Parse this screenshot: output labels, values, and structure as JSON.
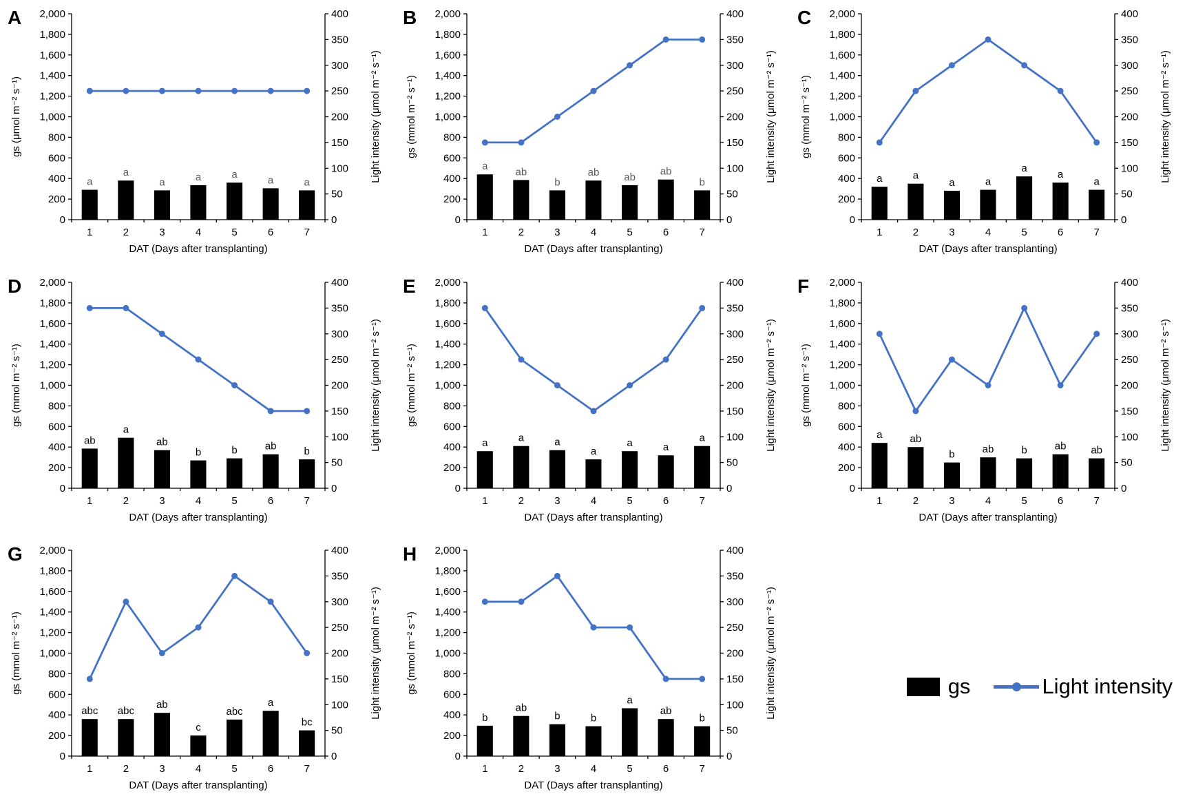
{
  "figure": {
    "background": "#ffffff",
    "bar_color": "#000000",
    "line_color": "#4472C4"
  },
  "legend": {
    "gs_label": "gs",
    "light_label": "Light intensity",
    "bar_color": "#000000",
    "line_color": "#4472C4"
  },
  "chart_data": [
    {
      "type": "bar+line",
      "panel": "A",
      "xlabel": "DAT (Days after transplanting)",
      "ylabel_left": "gs (μmol m⁻² s⁻¹)",
      "ylabel_right": "Light intensity (μmol m⁻² s⁻¹)",
      "ylim_left": [
        0,
        2000
      ],
      "ytick_step_left": 200,
      "ylim_right": [
        0,
        400
      ],
      "ytick_step_right": 50,
      "sig_color": "#595959",
      "categories": [
        "1",
        "2",
        "3",
        "4",
        "5",
        "6",
        "7"
      ],
      "series": [
        {
          "name": "gs",
          "type": "bar",
          "axis": "left",
          "color": "#000000",
          "values": [
            290,
            380,
            285,
            335,
            360,
            305,
            285
          ],
          "sig_labels": [
            "a",
            "a",
            "a",
            "a",
            "a",
            "a",
            "a"
          ]
        },
        {
          "name": "Light intensity",
          "type": "line",
          "axis": "right",
          "color": "#4472C4",
          "values": [
            250,
            250,
            250,
            250,
            250,
            250,
            250
          ]
        }
      ]
    },
    {
      "type": "bar+line",
      "panel": "B",
      "xlabel": "DAT (Days after transplanting)",
      "ylabel_left": "gs (mmol m⁻² s⁻¹)",
      "ylabel_right": "Light intensity (μmol m⁻² s⁻¹)",
      "ylim_left": [
        0,
        2000
      ],
      "ytick_step_left": 200,
      "ylim_right": [
        0,
        400
      ],
      "ytick_step_right": 50,
      "sig_color": "#595959",
      "categories": [
        "1",
        "2",
        "3",
        "4",
        "5",
        "6",
        "7"
      ],
      "series": [
        {
          "name": "gs",
          "type": "bar",
          "axis": "left",
          "color": "#000000",
          "values": [
            440,
            385,
            285,
            380,
            335,
            390,
            285
          ],
          "sig_labels": [
            "a",
            "ab",
            "b",
            "ab",
            "ab",
            "ab",
            "b"
          ]
        },
        {
          "name": "Light intensity",
          "type": "line",
          "axis": "right",
          "color": "#4472C4",
          "values": [
            150,
            150,
            200,
            250,
            300,
            350,
            350
          ]
        }
      ]
    },
    {
      "type": "bar+line",
      "panel": "C",
      "xlabel": "DAT (Days after transplanting)",
      "ylabel_left": "gs (mmol m⁻² s⁻¹)",
      "ylabel_right": "Light intensity (μmol m⁻² s⁻¹)",
      "ylim_left": [
        0,
        2000
      ],
      "ytick_step_left": 200,
      "ylim_right": [
        0,
        400
      ],
      "ytick_step_right": 50,
      "sig_color": "#000000",
      "categories": [
        "1",
        "2",
        "3",
        "4",
        "5",
        "6",
        "7"
      ],
      "series": [
        {
          "name": "gs",
          "type": "bar",
          "axis": "left",
          "color": "#000000",
          "values": [
            320,
            350,
            280,
            290,
            420,
            360,
            290
          ],
          "sig_labels": [
            "a",
            "a",
            "a",
            "a",
            "a",
            "a",
            "a"
          ]
        },
        {
          "name": "Light intensity",
          "type": "line",
          "axis": "right",
          "color": "#4472C4",
          "values": [
            150,
            250,
            300,
            350,
            300,
            250,
            150
          ]
        }
      ]
    },
    {
      "type": "bar+line",
      "panel": "D",
      "xlabel": "DAT (Days after transplanting)",
      "ylabel_left": "gs (mmol m⁻² s⁻¹)",
      "ylabel_right": "Light intensity (μmol m⁻² s⁻¹)",
      "ylim_left": [
        0,
        2000
      ],
      "ytick_step_left": 200,
      "ylim_right": [
        0,
        400
      ],
      "ytick_step_right": 50,
      "sig_color": "#000000",
      "categories": [
        "1",
        "2",
        "3",
        "4",
        "5",
        "6",
        "7"
      ],
      "series": [
        {
          "name": "gs",
          "type": "bar",
          "axis": "left",
          "color": "#000000",
          "values": [
            385,
            490,
            370,
            270,
            290,
            330,
            280
          ],
          "sig_labels": [
            "ab",
            "a",
            "ab",
            "b",
            "b",
            "ab",
            "b"
          ]
        },
        {
          "name": "Light intensity",
          "type": "line",
          "axis": "right",
          "color": "#4472C4",
          "values": [
            350,
            350,
            300,
            250,
            200,
            150,
            150
          ]
        }
      ]
    },
    {
      "type": "bar+line",
      "panel": "E",
      "xlabel": "DAT (Days after transplanting)",
      "ylabel_left": "gs (mmol m⁻² s⁻¹)",
      "ylabel_right": "Light intensity (μmol m⁻² s⁻¹)",
      "ylim_left": [
        0,
        2000
      ],
      "ytick_step_left": 200,
      "ylim_right": [
        0,
        400
      ],
      "ytick_step_right": 50,
      "sig_color": "#000000",
      "categories": [
        "1",
        "2",
        "3",
        "4",
        "5",
        "6",
        "7"
      ],
      "series": [
        {
          "name": "gs",
          "type": "bar",
          "axis": "left",
          "color": "#000000",
          "values": [
            360,
            410,
            370,
            280,
            360,
            320,
            410
          ],
          "sig_labels": [
            "a",
            "a",
            "a",
            "a",
            "a",
            "a",
            "a"
          ]
        },
        {
          "name": "Light intensity",
          "type": "line",
          "axis": "right",
          "color": "#4472C4",
          "values": [
            350,
            250,
            200,
            150,
            200,
            250,
            350
          ]
        }
      ]
    },
    {
      "type": "bar+line",
      "panel": "F",
      "xlabel": "DAT (Days after transplanting)",
      "ylabel_left": "gs (mmol m⁻² s⁻¹)",
      "ylabel_right": "Light intensity (μmol m⁻² s⁻¹)",
      "ylim_left": [
        0,
        2000
      ],
      "ytick_step_left": 200,
      "ylim_right": [
        0,
        400
      ],
      "ytick_step_right": 50,
      "sig_color": "#000000",
      "categories": [
        "1",
        "2",
        "3",
        "4",
        "5",
        "6",
        "7"
      ],
      "series": [
        {
          "name": "gs",
          "type": "bar",
          "axis": "left",
          "color": "#000000",
          "values": [
            440,
            400,
            250,
            300,
            290,
            330,
            290
          ],
          "sig_labels": [
            "a",
            "ab",
            "b",
            "ab",
            "b",
            "ab",
            "ab"
          ]
        },
        {
          "name": "Light intensity",
          "type": "line",
          "axis": "right",
          "color": "#4472C4",
          "values": [
            300,
            150,
            250,
            200,
            350,
            200,
            300
          ]
        }
      ]
    },
    {
      "type": "bar+line",
      "panel": "G",
      "xlabel": "DAT (Days after transplanting)",
      "ylabel_left": "gs (mmol m⁻² s⁻¹)",
      "ylabel_right": "Light intensity (μmol m⁻² s⁻¹)",
      "ylim_left": [
        0,
        2000
      ],
      "ytick_step_left": 200,
      "ylim_right": [
        0,
        400
      ],
      "ytick_step_right": 50,
      "sig_color": "#000000",
      "categories": [
        "1",
        "2",
        "3",
        "4",
        "5",
        "6",
        "7"
      ],
      "series": [
        {
          "name": "gs",
          "type": "bar",
          "axis": "left",
          "color": "#000000",
          "values": [
            360,
            360,
            420,
            200,
            355,
            440,
            250
          ],
          "sig_labels": [
            "abc",
            "abc",
            "ab",
            "c",
            "abc",
            "a",
            "bc"
          ]
        },
        {
          "name": "Light intensity",
          "type": "line",
          "axis": "right",
          "color": "#4472C4",
          "values": [
            150,
            300,
            200,
            250,
            350,
            300,
            200
          ]
        }
      ]
    },
    {
      "type": "bar+line",
      "panel": "H",
      "xlabel": "DAT (Days after transplanting)",
      "ylabel_left": "gs (mmol m⁻² s⁻¹)",
      "ylabel_right": "Light intensity (μmol m⁻² s⁻¹)",
      "ylim_left": [
        0,
        2000
      ],
      "ytick_step_left": 200,
      "ylim_right": [
        0,
        400
      ],
      "ytick_step_right": 50,
      "sig_color": "#000000",
      "categories": [
        "1",
        "2",
        "3",
        "4",
        "5",
        "6",
        "7"
      ],
      "series": [
        {
          "name": "gs",
          "type": "bar",
          "axis": "left",
          "color": "#000000",
          "values": [
            295,
            390,
            310,
            290,
            465,
            360,
            290
          ],
          "sig_labels": [
            "b",
            "ab",
            "b",
            "b",
            "a",
            "ab",
            "b"
          ]
        },
        {
          "name": "Light intensity",
          "type": "line",
          "axis": "right",
          "color": "#4472C4",
          "values": [
            300,
            300,
            350,
            250,
            250,
            150,
            150
          ]
        }
      ]
    }
  ]
}
